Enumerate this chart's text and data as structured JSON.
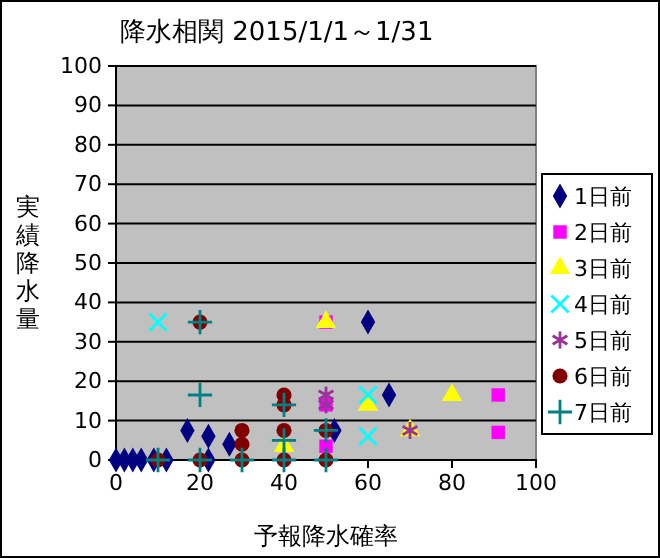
{
  "chart_data": {
    "type": "scatter",
    "title": "降水相関 2015/1/1～1/31",
    "xlabel": "予報降水確率",
    "ylabel": "実績降水量",
    "xlim": [
      0,
      100
    ],
    "xticks": [
      0,
      20,
      40,
      60,
      80,
      100
    ],
    "ylim": [
      0,
      100
    ],
    "yticks": [
      0,
      10,
      20,
      30,
      40,
      50,
      60,
      70,
      80,
      90,
      100
    ],
    "grid": "y",
    "legend": "right",
    "series": [
      {
        "name": "1日前",
        "color": "#000080",
        "x": [
          0,
          2,
          4,
          6,
          9,
          12,
          17,
          22,
          22,
          27,
          52,
          60,
          65
        ],
        "values": [
          0,
          0,
          0,
          0,
          0,
          0,
          7.5,
          6,
          0,
          4,
          7.5,
          35,
          16.5
        ]
      },
      {
        "name": "2日前",
        "color": "#ff00ff",
        "x": [
          91,
          91,
          50,
          50,
          50
        ],
        "values": [
          16.5,
          7,
          35,
          14,
          3.5
        ]
      },
      {
        "name": "3日前",
        "color": "#ffff00",
        "x": [
          50,
          60,
          80,
          40,
          70
        ],
        "values": [
          35,
          14,
          16.5,
          3.5,
          7.5
        ]
      },
      {
        "name": "4日前",
        "color": "#00ffff",
        "x": [
          10,
          60,
          60
        ],
        "values": [
          35,
          16.5,
          6
        ]
      },
      {
        "name": "5日前",
        "color": "#993399",
        "x": [
          50,
          70,
          50
        ],
        "values": [
          14,
          7.5,
          16.5
        ]
      },
      {
        "name": "6日前",
        "color": "#800000",
        "x": [
          20,
          40,
          40,
          40,
          30,
          30,
          10,
          20,
          30,
          40,
          50,
          50
        ],
        "values": [
          35,
          16.5,
          14,
          7.5,
          7.5,
          4,
          0,
          0,
          0,
          0,
          0,
          7.5
        ]
      },
      {
        "name": "7日前",
        "color": "#008080",
        "x": [
          20,
          20,
          40,
          40,
          10,
          20,
          30,
          40,
          50,
          50
        ],
        "values": [
          35,
          16.5,
          14,
          5,
          0,
          0,
          0,
          0,
          0,
          7.5
        ]
      }
    ]
  }
}
